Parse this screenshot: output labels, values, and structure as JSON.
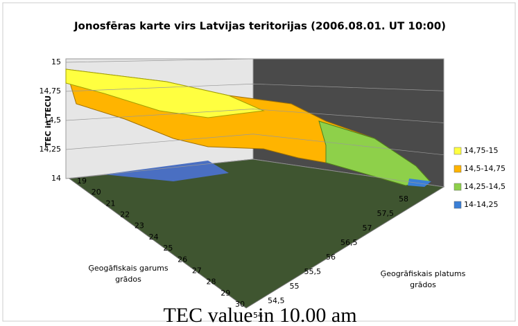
{
  "chart_data": {
    "type": "surface",
    "title": "Jonosfēras karte virs Latvijas teritorijas (2006.08.01. UT 10:00)",
    "z_label": "TEC in TECU",
    "x_label": [
      "Ģeogāfiskais  garums",
      "grādos"
    ],
    "y_label": [
      "Ģeogrāfiskais  platums",
      "grādos"
    ],
    "zlim": [
      14,
      15
    ],
    "zticks": [
      14,
      {
        "value": 14.25,
        "label": "14,25"
      },
      {
        "value": 14.5,
        "label": "14,5"
      },
      {
        "value": 14.75,
        "label": "14,75"
      },
      15
    ],
    "xlim": [
      19,
      30
    ],
    "xticks": [
      19,
      20,
      21,
      22,
      23,
      24,
      25,
      26,
      27,
      28,
      29,
      30
    ],
    "ylim": [
      54,
      58
    ],
    "yticks": [
      54,
      {
        "value": 54.5,
        "label": "54,5"
      },
      55,
      {
        "value": 55.5,
        "label": "55,5"
      },
      56,
      {
        "value": 56.5,
        "label": "56,5"
      },
      57,
      {
        "value": 57.5,
        "label": "57,5"
      },
      58
    ],
    "series": [
      {
        "name": "14,75-15",
        "color": "#ffff40"
      },
      {
        "name": "14,5-14,75",
        "color": "#ffb400"
      },
      {
        "name": "14,25-14,5",
        "color": "#8ed04a"
      },
      {
        "name": "14-14,25",
        "color": "#3a7fd6"
      }
    ],
    "caption": "TEC value  in 10.00 am"
  }
}
